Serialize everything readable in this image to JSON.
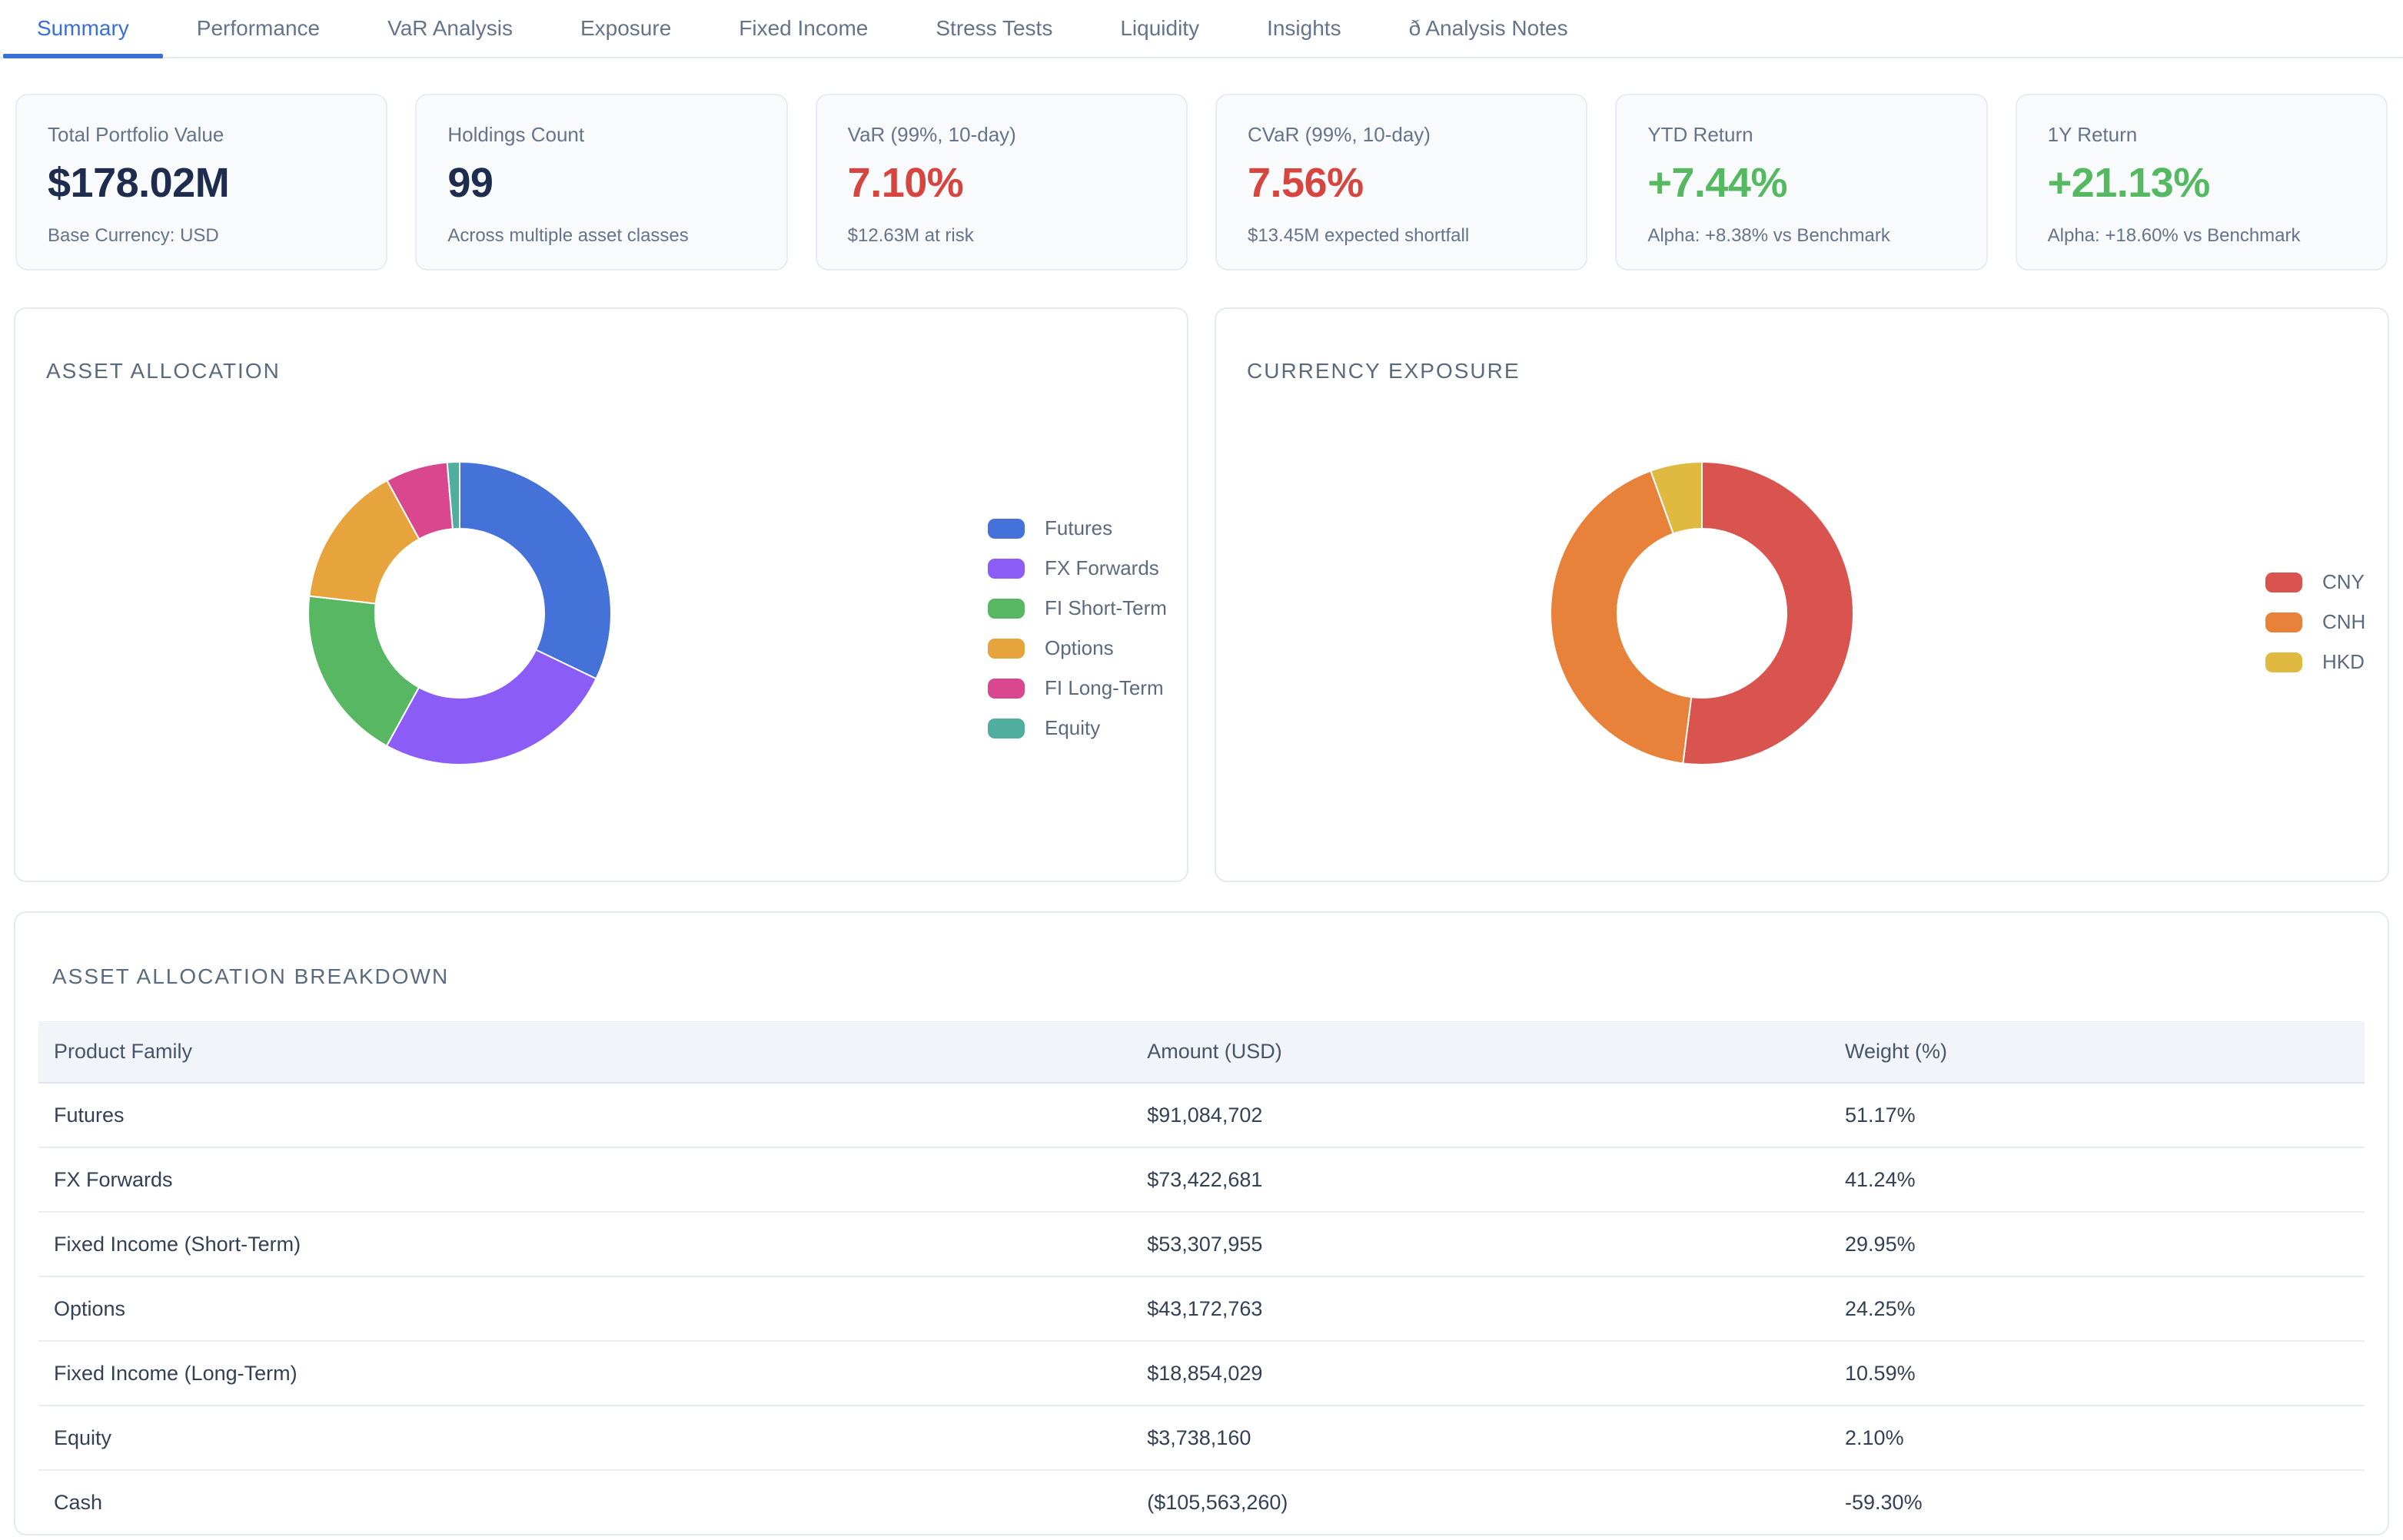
{
  "tab_bar": {
    "tabs": [
      {
        "label": "Summary",
        "active": true
      },
      {
        "label": "Performance",
        "active": false
      },
      {
        "label": "VaR Analysis",
        "active": false
      },
      {
        "label": "Exposure",
        "active": false
      },
      {
        "label": "Fixed Income",
        "active": false
      },
      {
        "label": "Stress Tests",
        "active": false
      },
      {
        "label": "Liquidity",
        "active": false
      },
      {
        "label": "Insights",
        "active": false
      },
      {
        "label": "ð Analysis Notes",
        "active": false
      }
    ]
  },
  "kpi_cards": [
    {
      "label": "Total Portfolio Value",
      "value": "$178.02M",
      "sub": "Base Currency: USD",
      "value_color": "#1e2c4e"
    },
    {
      "label": "Holdings Count",
      "value": "99",
      "sub": "Across multiple asset classes",
      "value_color": "#1e2c4e"
    },
    {
      "label": "VaR (99%, 10-day)",
      "value": "7.10%",
      "sub": "$12.63M at risk",
      "value_color": "#d6453f"
    },
    {
      "label": "CVaR (99%, 10-day)",
      "value": "7.56%",
      "sub": "$13.45M expected shortfall",
      "value_color": "#d6453f"
    },
    {
      "label": "YTD Return",
      "value": "+7.44%",
      "sub": "Alpha: +8.38% vs Benchmark",
      "value_color": "#55b962"
    },
    {
      "label": "1Y Return",
      "value": "+21.13%",
      "sub": "Alpha: +18.60% vs Benchmark",
      "value_color": "#55b962"
    }
  ],
  "panels": {
    "asset_allocation": {
      "title": "ASSET ALLOCATION"
    },
    "currency_exposure": {
      "title": "CURRENCY EXPOSURE"
    },
    "breakdown": {
      "title": "ASSET ALLOCATION BREAKDOWN"
    }
  },
  "chart_data": [
    {
      "type": "pie",
      "variant": "donut",
      "title": "ASSET ALLOCATION",
      "labels": [
        "Futures",
        "FX Forwards",
        "FI Short-Term",
        "Options",
        "FI Long-Term",
        "Equity"
      ],
      "values": [
        51.17,
        41.24,
        29.95,
        24.25,
        10.59,
        2.1
      ],
      "unit": "portfolio weight %",
      "colors": [
        "#4472d8",
        "#8b5cf6",
        "#57b763",
        "#e7a33c",
        "#d9488e",
        "#4fae9e"
      ],
      "legend_position": "right",
      "start_angle_deg": 0,
      "direction": "clockwise"
    },
    {
      "type": "pie",
      "variant": "donut",
      "title": "CURRENCY EXPOSURE",
      "labels": [
        "CNY",
        "CNH",
        "HKD"
      ],
      "values": [
        52.0,
        42.5,
        5.5
      ],
      "unit": "estimated share %",
      "colors": [
        "#d9534f",
        "#e8823a",
        "#e0ba40"
      ],
      "legend_position": "right",
      "start_angle_deg": 0,
      "direction": "clockwise"
    }
  ],
  "table": {
    "columns": [
      "Product Family",
      "Amount (USD)",
      "Weight (%)"
    ],
    "rows": [
      [
        "Futures",
        "$91,084,702",
        "51.17%"
      ],
      [
        "FX Forwards",
        "$73,422,681",
        "41.24%"
      ],
      [
        "Fixed Income (Short-Term)",
        "$53,307,955",
        "29.95%"
      ],
      [
        "Options",
        "$43,172,763",
        "24.25%"
      ],
      [
        "Fixed Income (Long-Term)",
        "$18,854,029",
        "10.59%"
      ],
      [
        "Equity",
        "$3,738,160",
        "2.10%"
      ],
      [
        "Cash",
        "($105,563,260)",
        "-59.30%"
      ]
    ]
  },
  "theme": {
    "accent_blue": "#3b6fd8",
    "negative_red": "#d6453f",
    "positive_green": "#55b962",
    "value_navy": "#1e2c4e",
    "card_bg": "#f8fafc",
    "panel_border": "#e5eaf1",
    "table_header_bg": "#f1f5f9",
    "muted_text": "#64748b",
    "title_text": "#5b6b7e"
  }
}
